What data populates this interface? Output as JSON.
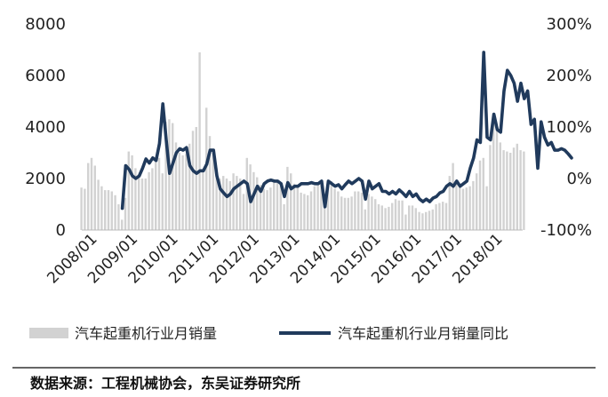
{
  "chart_data": {
    "type": "bar+line",
    "x_tick_labels": [
      "2008/01",
      "2009/01",
      "2010/01",
      "2011/01",
      "2012/01",
      "2013/01",
      "2014/01",
      "2015/01",
      "2016/01",
      "2017/01",
      "2018/01"
    ],
    "left_axis": {
      "ylim": [
        0,
        8000
      ],
      "ticks": [
        "0",
        "2000",
        "4000",
        "6000",
        "8000"
      ]
    },
    "right_axis": {
      "ylim": [
        -100,
        300
      ],
      "ticks": [
        "-100%",
        "0%",
        "100%",
        "200%",
        "300%"
      ]
    },
    "series": [
      {
        "name": "汽车起重机行业月销量",
        "kind": "bar",
        "color": "#d2d2d2",
        "start": "2008-01",
        "values": [
          1650,
          1600,
          2600,
          2800,
          2500,
          1950,
          1700,
          1550,
          1550,
          1500,
          1350,
          1000,
          400,
          1250,
          3050,
          2900,
          2400,
          2150,
          2000,
          2000,
          2250,
          2400,
          2650,
          2800,
          2200,
          4200,
          4300,
          4150,
          3400,
          3000,
          2900,
          2950,
          3350,
          3850,
          4000,
          6900,
          2300,
          4750,
          3650,
          3000,
          2400,
          2000,
          2100,
          2000,
          1900,
          2200,
          2100,
          2000,
          1400,
          2800,
          2550,
          2250,
          2050,
          1750,
          1600,
          1550,
          1650,
          1850,
          1900,
          1850,
          1000,
          2450,
          2200,
          1800,
          1650,
          1450,
          1400,
          1350,
          1500,
          1700,
          1750,
          1750,
          1200,
          1900,
          1900,
          1600,
          1500,
          1300,
          1250,
          1250,
          1300,
          1500,
          1500,
          1450,
          800,
          1400,
          1300,
          1200,
          1000,
          950,
          850,
          900,
          1050,
          1200,
          1150,
          1150,
          600,
          950,
          950,
          850,
          700,
          650,
          700,
          750,
          800,
          1000,
          1050,
          1100,
          1050,
          2100,
          2600,
          1850,
          1750,
          1600,
          1650,
          1700,
          1900,
          2200,
          2700,
          2800,
          1700,
          3300,
          4100,
          3900,
          3400,
          3100,
          3050,
          3000,
          3200,
          3350,
          3100,
          3050
        ]
      },
      {
        "name": "汽车起重机行业月销量同比",
        "kind": "line",
        "color": "#203a5c",
        "start": "2009-01",
        "values": [
          -58,
          25,
          18,
          5,
          0,
          5,
          20,
          38,
          30,
          40,
          35,
          68,
          145,
          75,
          10,
          30,
          50,
          58,
          55,
          60,
          25,
          15,
          10,
          15,
          15,
          28,
          55,
          55,
          5,
          -20,
          -28,
          -35,
          -30,
          -20,
          -15,
          -10,
          -5,
          -10,
          -45,
          -30,
          -15,
          -25,
          -10,
          -5,
          -3,
          -5,
          -5,
          -10,
          -35,
          -8,
          -20,
          -15,
          -15,
          -10,
          -10,
          -10,
          -8,
          -10,
          -10,
          -5,
          -55,
          -5,
          -10,
          -15,
          -12,
          -20,
          -12,
          -5,
          -10,
          -5,
          0,
          -5,
          -40,
          -5,
          -20,
          -15,
          -10,
          -25,
          -25,
          -30,
          -25,
          -30,
          -22,
          -28,
          -35,
          -25,
          -35,
          -30,
          -40,
          -45,
          -40,
          -45,
          -38,
          -35,
          -28,
          -25,
          -15,
          -10,
          -15,
          -5,
          -15,
          -10,
          -5,
          20,
          40,
          75,
          70,
          245,
          80,
          75,
          125,
          95,
          90,
          170,
          210,
          200,
          185,
          150,
          185,
          155,
          170,
          105,
          115,
          20,
          110,
          80,
          65,
          70,
          55,
          55,
          58,
          55,
          48,
          40
        ]
      }
    ],
    "legend": [
      {
        "label": "汽车起重机行业月销量",
        "kind": "bar",
        "color": "#d2d2d2"
      },
      {
        "label": "汽车起重机行业月销量同比",
        "kind": "line",
        "color": "#203a5c"
      }
    ],
    "grid": false,
    "legend_position": "bottom"
  },
  "source_note": "数据来源：工程机械协会，东吴证券研究所"
}
